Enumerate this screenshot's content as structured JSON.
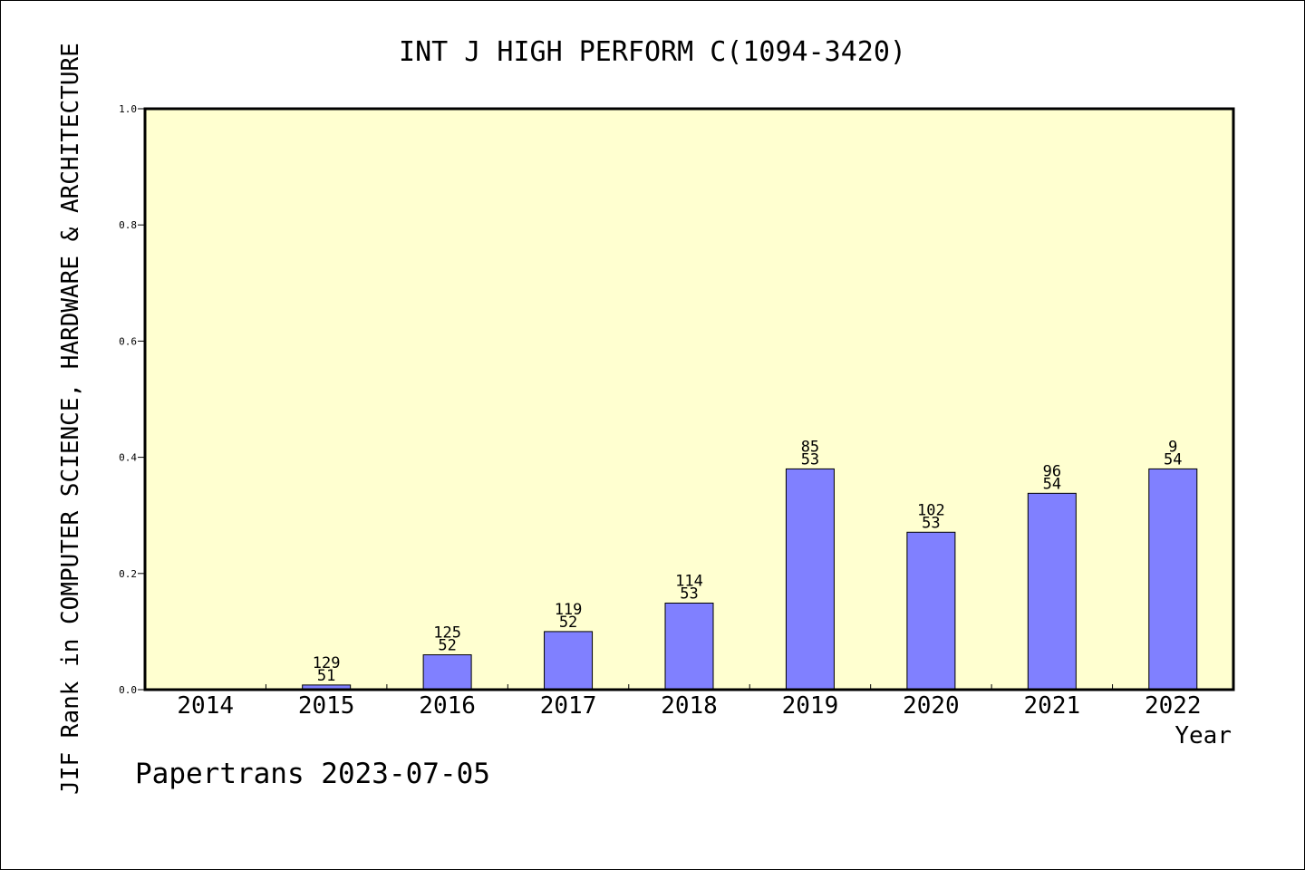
{
  "chart_data": {
    "type": "bar",
    "title": "INT J HIGH PERFORM C(1094-3420)",
    "xlabel": "Year",
    "ylabel": "JIF Rank in COMPUTER SCIENCE, HARDWARE & ARCHITECTURE",
    "categories": [
      "2014",
      "2015",
      "2016",
      "2017",
      "2018",
      "2019",
      "2020",
      "2021",
      "2022"
    ],
    "values": [
      null,
      0.008,
      0.06,
      0.1,
      0.149,
      0.38,
      0.271,
      0.338,
      0.38
    ],
    "rank_labels": [
      null,
      [
        "129",
        "51"
      ],
      [
        "125",
        "52"
      ],
      [
        "119",
        "52"
      ],
      [
        "114",
        "53"
      ],
      [
        "85",
        "53"
      ],
      [
        "102",
        "53"
      ],
      [
        "96",
        "54"
      ],
      [
        "9",
        "54"
      ]
    ],
    "ylim": [
      0,
      1.0
    ],
    "yticks": [
      "0.0",
      "0.2",
      "0.4",
      "0.6",
      "0.8",
      "1.0"
    ],
    "grid": false,
    "colors": {
      "plot_background": "#ffffd0",
      "bar_fill": "#8080ff",
      "bar_stroke": "#000000"
    }
  },
  "footer": "Papertrans 2023-07-05"
}
